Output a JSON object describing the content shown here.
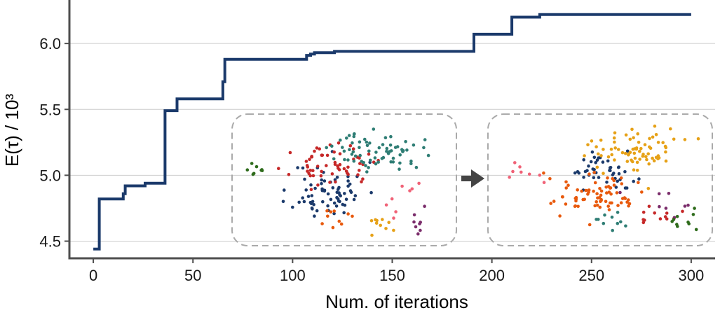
{
  "chart_data": {
    "type": "line",
    "title": "",
    "xlabel": "Num. of iterations",
    "ylabel": "E(τ) / 10³",
    "xlim": [
      -12,
      312
    ],
    "ylim": [
      4.37,
      6.33
    ],
    "x_ticks": [
      0,
      50,
      100,
      150,
      200,
      250,
      300
    ],
    "y_ticks": [
      4.5,
      5.0,
      5.5,
      6.0
    ],
    "x_tick_labels": [
      "0",
      "50",
      "100",
      "150",
      "200",
      "250",
      "300"
    ],
    "y_tick_labels": [
      "4.5",
      "5.0",
      "5.5",
      "6.0"
    ],
    "grid": "horizontal",
    "legend": "none",
    "colors": {
      "line": "#1b3a6b",
      "grid": "#cccccc",
      "axis": "#4d4d4d",
      "inset_border": "#aaaaaa",
      "arrow": "#444444",
      "clusters": [
        "#1b3a6b",
        "#c62828",
        "#2e7d74",
        "#e8590c",
        "#e6a117",
        "#f06277",
        "#7b2d6b",
        "#2e6b1b"
      ]
    },
    "series": [
      {
        "style": "step",
        "x": [
          0,
          3,
          15,
          16,
          26,
          36,
          42,
          65,
          66,
          107,
          109,
          111,
          121,
          191,
          210,
          224,
          300
        ],
        "y": [
          4.44,
          4.82,
          4.86,
          4.92,
          4.94,
          5.49,
          5.58,
          5.71,
          5.88,
          5.91,
          5.92,
          5.93,
          5.94,
          6.07,
          6.2,
          6.22,
          6.22
        ]
      }
    ],
    "insets": [
      {
        "name": "before",
        "xlim": [
          75,
          178
        ],
        "ylim": [
          4.5,
          5.36
        ],
        "groups": [
          {
            "color": "#1b3a6b",
            "cx": 118,
            "cy": 4.88,
            "sx": 9,
            "sy": 0.11,
            "n": 70,
            "seed": 11
          },
          {
            "color": "#c62828",
            "cx": 120,
            "cy": 5.07,
            "sx": 10,
            "sy": 0.07,
            "n": 60,
            "seed": 23
          },
          {
            "color": "#2e7d74",
            "cx": 143,
            "cy": 5.18,
            "sx": 11,
            "sy": 0.07,
            "n": 70,
            "seed": 37
          },
          {
            "color": "#e8590c",
            "cx": 120,
            "cy": 4.68,
            "sx": 6,
            "sy": 0.05,
            "n": 10,
            "seed": 41
          },
          {
            "color": "#e6a117",
            "cx": 145,
            "cy": 4.64,
            "sx": 4,
            "sy": 0.04,
            "n": 10,
            "seed": 53
          },
          {
            "color": "#f06277",
            "cx": 160,
            "cy": 4.78,
            "sx": 10,
            "sy": 0.08,
            "n": 8,
            "seed": 67
          },
          {
            "color": "#7b2d6b",
            "cx": 165,
            "cy": 4.65,
            "sx": 4,
            "sy": 0.05,
            "n": 8,
            "seed": 71
          },
          {
            "color": "#2e6b1b",
            "cx": 82,
            "cy": 5.04,
            "sx": 4,
            "sy": 0.03,
            "n": 8,
            "seed": 83
          }
        ]
      },
      {
        "name": "after",
        "xlim": [
          205,
          308
        ],
        "ylim": [
          4.5,
          5.36
        ],
        "groups": [
          {
            "color": "#1b3a6b",
            "cx": 255,
            "cy": 5.04,
            "sx": 8,
            "sy": 0.07,
            "n": 45,
            "seed": 101
          },
          {
            "color": "#e6a117",
            "cx": 272,
            "cy": 5.18,
            "sx": 11,
            "sy": 0.08,
            "n": 75,
            "seed": 113
          },
          {
            "color": "#e8590c",
            "cx": 252,
            "cy": 4.84,
            "sx": 11,
            "sy": 0.08,
            "n": 75,
            "seed": 127
          },
          {
            "color": "#2e7d74",
            "cx": 258,
            "cy": 4.68,
            "sx": 6,
            "sy": 0.04,
            "n": 10,
            "seed": 131
          },
          {
            "color": "#c62828",
            "cx": 282,
            "cy": 4.66,
            "sx": 6,
            "sy": 0.04,
            "n": 12,
            "seed": 149
          },
          {
            "color": "#f06277",
            "cx": 215,
            "cy": 5.03,
            "sx": 4,
            "sy": 0.03,
            "n": 8,
            "seed": 157
          },
          {
            "color": "#7b2d6b",
            "cx": 287,
            "cy": 4.8,
            "sx": 8,
            "sy": 0.07,
            "n": 8,
            "seed": 163
          },
          {
            "color": "#2e6b1b",
            "cx": 295,
            "cy": 4.63,
            "sx": 4,
            "sy": 0.05,
            "n": 10,
            "seed": 173
          }
        ]
      }
    ]
  }
}
